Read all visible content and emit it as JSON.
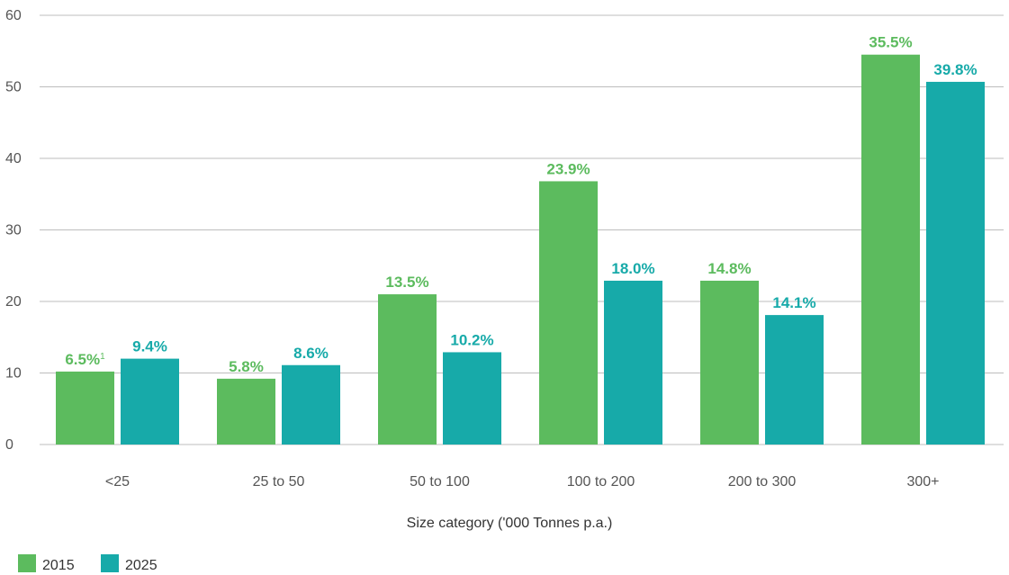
{
  "chart_data": {
    "type": "bar",
    "categories": [
      "<25",
      "25 to 50",
      "50 to 100",
      "100 to 200",
      "200 to 300",
      "300+"
    ],
    "xlabel": "Size category ('000 Tonnes p.a.)",
    "ylabel": "",
    "ylim": [
      0,
      60
    ],
    "yticks": [
      0,
      10,
      20,
      30,
      40,
      50,
      60
    ],
    "grid": true,
    "legend_position": "bottom-left",
    "series": [
      {
        "name": "2015",
        "color": "#5cbb5e",
        "values": [
          10.2,
          9.2,
          21.0,
          36.8,
          22.9,
          54.5
        ],
        "labels": [
          "6.5%",
          "5.8%",
          "13.5%",
          "23.9%",
          "14.8%",
          "35.5%"
        ]
      },
      {
        "name": "2025",
        "color": "#17aaa9",
        "values": [
          12.0,
          11.1,
          12.9,
          22.9,
          18.1,
          50.7
        ],
        "labels": [
          "9.4%",
          "8.6%",
          "10.2%",
          "18.0%",
          "14.1%",
          "39.8%"
        ]
      }
    ],
    "annotations": [
      {
        "series": 0,
        "index": 0,
        "superscript": "1"
      }
    ]
  }
}
